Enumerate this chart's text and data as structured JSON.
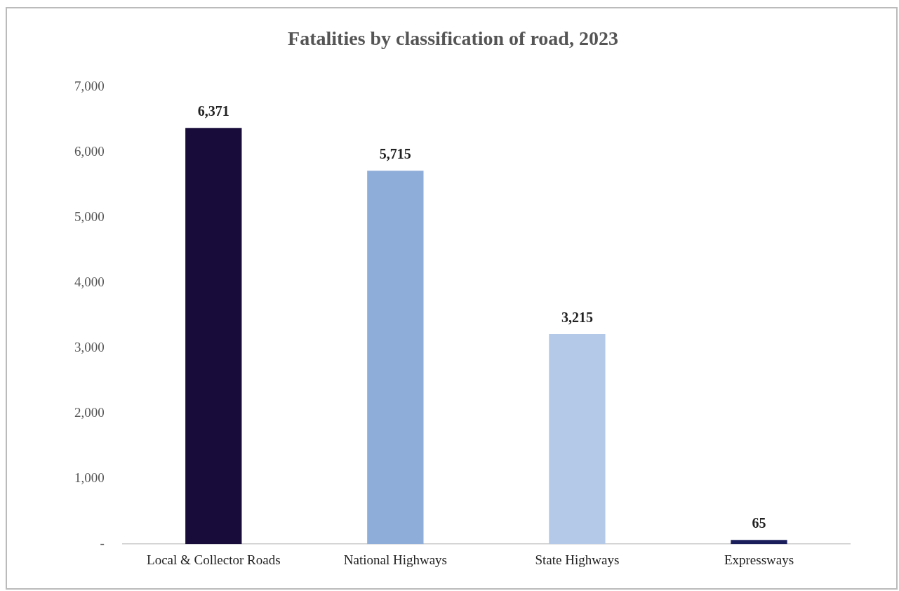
{
  "chart_data": {
    "type": "bar",
    "title": "Fatalities by classification of road, 2023",
    "categories": [
      "Local & Collector Roads",
      "National Highways",
      "State Highways",
      "Expressways"
    ],
    "values": [
      6371,
      5715,
      3215,
      65
    ],
    "colors": [
      "#170c3a",
      "#8eadd9",
      "#b4c9e8",
      "#1a1f5c"
    ],
    "value_labels": [
      "6,371",
      "5,715",
      "3,215",
      "65"
    ],
    "ylim": [
      0,
      7000
    ],
    "yticks": [
      {
        "value": 0,
        "label": "-"
      },
      {
        "value": 1000,
        "label": "1,000"
      },
      {
        "value": 2000,
        "label": "2,000"
      },
      {
        "value": 3000,
        "label": "3,000"
      },
      {
        "value": 4000,
        "label": "4,000"
      },
      {
        "value": 5000,
        "label": "5,000"
      },
      {
        "value": 6000,
        "label": "6,000"
      },
      {
        "value": 7000,
        "label": "7,000"
      }
    ],
    "grid": false,
    "legend": false
  }
}
